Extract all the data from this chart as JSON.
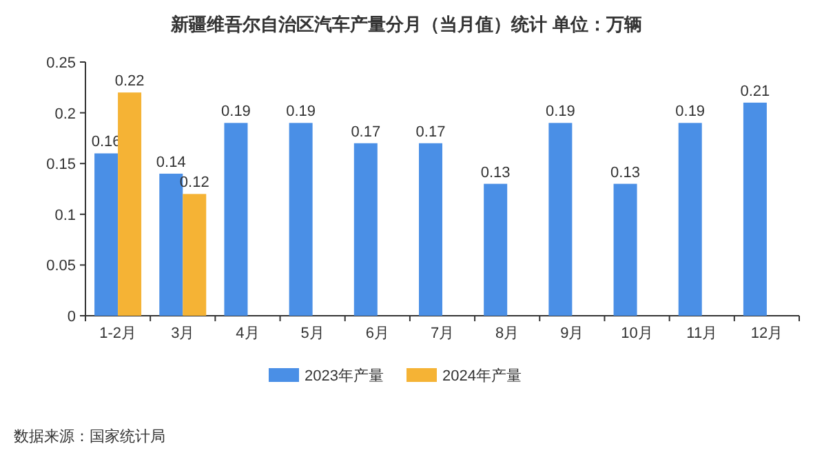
{
  "chart_data": {
    "type": "bar",
    "title": "新疆维吾尔自治区汽车产量分月（当月值）统计  单位：万辆",
    "categories": [
      "1-2月",
      "3月",
      "4月",
      "5月",
      "6月",
      "7月",
      "8月",
      "9月",
      "10月",
      "11月",
      "12月"
    ],
    "series": [
      {
        "name": "2023年产量",
        "color": "#4a8fe6",
        "values": [
          0.16,
          0.14,
          0.19,
          0.19,
          0.17,
          0.17,
          0.13,
          0.19,
          0.13,
          0.19,
          0.21
        ]
      },
      {
        "name": "2024年产量",
        "color": "#f5b335",
        "values": [
          0.22,
          0.12,
          null,
          null,
          null,
          null,
          null,
          null,
          null,
          null,
          null
        ]
      }
    ],
    "ylim": [
      0,
      0.25
    ],
    "yticks": [
      0,
      0.05,
      0.1,
      0.15,
      0.2,
      0.25
    ],
    "data_labels": true,
    "legend": "bottom",
    "annotations": [
      "数据来源：国家统计局"
    ]
  }
}
